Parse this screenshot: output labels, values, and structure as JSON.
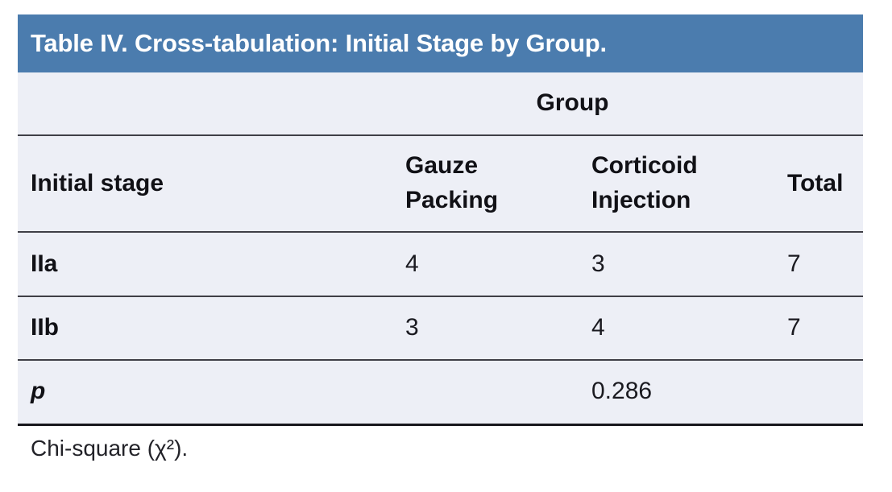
{
  "title_bar": {
    "title": "Table IV. Cross-tabulation: Initial Stage by Group."
  },
  "table": {
    "group_label": "Group",
    "column_headers": [
      "Initial stage",
      "Gauze Packing",
      "Corticoid Injection",
      "Total"
    ],
    "rows": [
      {
        "label": "IIa",
        "gauze_packing": "4",
        "corticoid_injection": "3",
        "total": "7"
      },
      {
        "label": "IIb",
        "gauze_packing": "3",
        "corticoid_injection": "4",
        "total": "7"
      },
      {
        "label": "p",
        "gauze_packing": "",
        "corticoid_injection": "0.286",
        "total": ""
      }
    ]
  },
  "footnote": "Chi-square (χ²).",
  "colors": {
    "title_bar_bg": "#4b7cae",
    "table_bg": "#edeff6",
    "title_text": "#ffffff",
    "rule": "#3f3f46",
    "bottom_rule": "#17171c",
    "text": "#1a1a20"
  }
}
